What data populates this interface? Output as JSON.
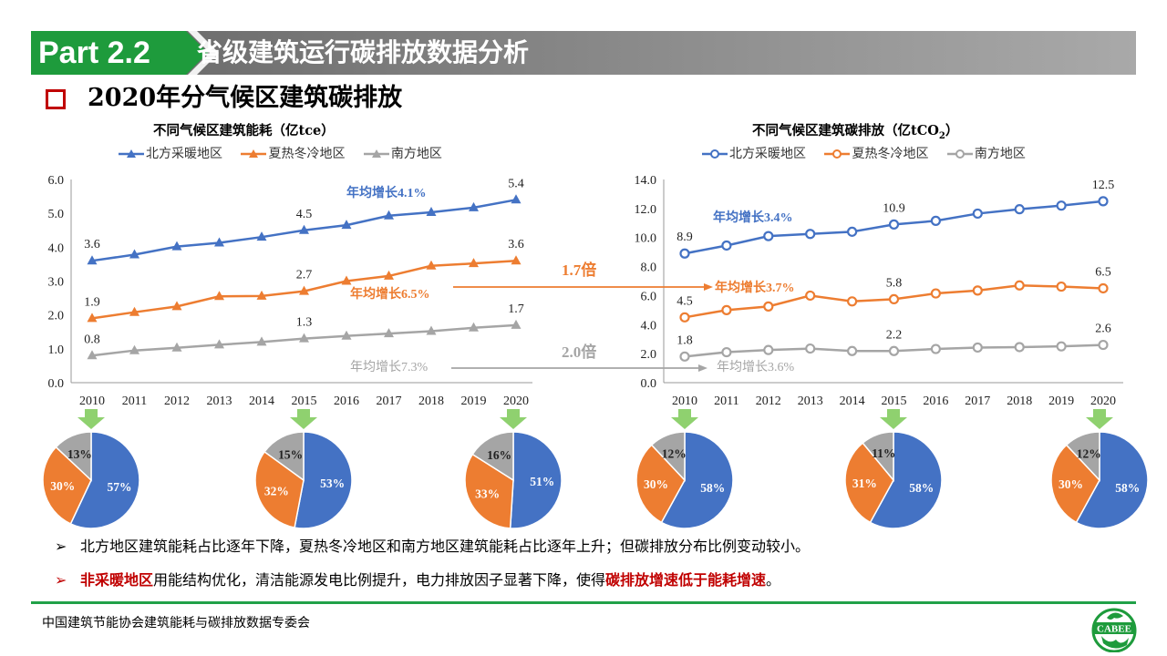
{
  "header": {
    "part_label": "Part 2.2",
    "title": "省级建筑运行碳排放数据分析",
    "green": "#1e9b3c",
    "gray": "#8a8a8a"
  },
  "section": {
    "title": "2020年分气候区建筑碳排放"
  },
  "legend": [
    "北方采暖地区",
    "夏热冬冷地区",
    "南方地区"
  ],
  "colors": {
    "blue": "#4472c4",
    "orange": "#ed7d31",
    "gray": "#a5a5a5"
  },
  "chart_data": [
    {
      "type": "line",
      "title": "不同气候区建筑能耗（亿tce）",
      "x": [
        "2010",
        "2011",
        "2012",
        "2013",
        "2014",
        "2015",
        "2016",
        "2017",
        "2018",
        "2019",
        "2020"
      ],
      "ylim": [
        0,
        6
      ],
      "yticks": [
        "0.0",
        "1.0",
        "2.0",
        "3.0",
        "4.0",
        "5.0",
        "6.0"
      ],
      "grid": false,
      "legend_position": "top",
      "series": [
        {
          "name": "北方采暖地区",
          "values": [
            3.6,
            3.78,
            4.02,
            4.13,
            4.3,
            4.5,
            4.65,
            4.93,
            5.03,
            5.17,
            5.4
          ]
        },
        {
          "name": "夏热冬冷地区",
          "values": [
            1.9,
            2.08,
            2.25,
            2.55,
            2.56,
            2.7,
            3.0,
            3.15,
            3.45,
            3.52,
            3.6
          ]
        },
        {
          "name": "南方地区",
          "values": [
            0.8,
            0.95,
            1.03,
            1.12,
            1.2,
            1.3,
            1.38,
            1.45,
            1.52,
            1.62,
            1.7
          ]
        }
      ],
      "data_labels": [
        {
          "series": 0,
          "index": 0,
          "text": "3.6"
        },
        {
          "series": 0,
          "index": 5,
          "text": "4.5"
        },
        {
          "series": 0,
          "index": 10,
          "text": "5.4"
        },
        {
          "series": 1,
          "index": 0,
          "text": "1.9"
        },
        {
          "series": 1,
          "index": 5,
          "text": "2.7"
        },
        {
          "series": 1,
          "index": 10,
          "text": "3.6"
        },
        {
          "series": 2,
          "index": 0,
          "text": "0.8"
        },
        {
          "series": 2,
          "index": 5,
          "text": "1.3"
        },
        {
          "series": 2,
          "index": 10,
          "text": "1.7"
        }
      ],
      "annotations": {
        "blue": "年均增长4.1%",
        "orange": "年均增长6.5%",
        "gray": "年均增长7.3%"
      }
    },
    {
      "type": "line",
      "title": "不同气候区建筑碳排放（亿tCO",
      "title_sub": "2",
      "title_end": "）",
      "x": [
        "2010",
        "2011",
        "2012",
        "2013",
        "2014",
        "2015",
        "2016",
        "2017",
        "2018",
        "2019",
        "2020"
      ],
      "ylim": [
        0,
        14
      ],
      "yticks": [
        "0.0",
        "2.0",
        "4.0",
        "6.0",
        "8.0",
        "10.0",
        "12.0",
        "14.0"
      ],
      "grid": false,
      "legend_position": "top",
      "series": [
        {
          "name": "北方采暖地区",
          "values": [
            8.9,
            9.45,
            10.1,
            10.25,
            10.4,
            10.9,
            11.15,
            11.65,
            11.95,
            12.2,
            12.5
          ]
        },
        {
          "name": "夏热冬冷地区",
          "values": [
            4.5,
            5.0,
            5.25,
            6.0,
            5.6,
            5.75,
            6.15,
            6.35,
            6.7,
            6.62,
            6.5
          ]
        },
        {
          "name": "南方地区",
          "values": [
            1.8,
            2.1,
            2.25,
            2.35,
            2.18,
            2.18,
            2.32,
            2.42,
            2.45,
            2.5,
            2.6
          ]
        }
      ],
      "data_labels": [
        {
          "series": 0,
          "index": 0,
          "text": "8.9"
        },
        {
          "series": 0,
          "index": 5,
          "text": "10.9"
        },
        {
          "series": 0,
          "index": 10,
          "text": "12.5"
        },
        {
          "series": 1,
          "index": 0,
          "text": "4.5"
        },
        {
          "series": 1,
          "index": 5,
          "text": "5.8"
        },
        {
          "series": 1,
          "index": 10,
          "text": "6.5"
        },
        {
          "series": 2,
          "index": 0,
          "text": "1.8"
        },
        {
          "series": 2,
          "index": 5,
          "text": "2.2"
        },
        {
          "series": 2,
          "index": 10,
          "text": "2.6"
        }
      ],
      "annotations": {
        "blue": "年均增长3.4%",
        "orange": "年均增长3.7%",
        "gray": "年均增长3.6%"
      }
    },
    {
      "type": "pie",
      "values": [
        57,
        30,
        13
      ],
      "labels": [
        "57%",
        "30%",
        "13%"
      ]
    },
    {
      "type": "pie",
      "values": [
        53,
        32,
        15
      ],
      "labels": [
        "53%",
        "32%",
        "15%"
      ]
    },
    {
      "type": "pie",
      "values": [
        51,
        33,
        16
      ],
      "labels": [
        "51%",
        "33%",
        "16%"
      ]
    },
    {
      "type": "pie",
      "values": [
        58,
        30,
        12
      ],
      "labels": [
        "58%",
        "30%",
        "12%"
      ]
    },
    {
      "type": "pie",
      "values": [
        58,
        31,
        11
      ],
      "labels": [
        "58%",
        "31%",
        "11%"
      ]
    },
    {
      "type": "pie",
      "values": [
        58,
        30,
        12
      ],
      "labels": [
        "58%",
        "30%",
        "12%"
      ]
    }
  ],
  "multipliers": {
    "orange": "1.7倍",
    "gray": "2.0倍"
  },
  "bullets": {
    "line1": "北方地区建筑能耗占比逐年下降，夏热冬冷地区和南方地区建筑能耗占比逐年上升；但碳排放分布比例变动较小。",
    "line2_red1": "非采暖地区",
    "line2_mid": "用能结构优化，清洁能源发电比例提升，电力排放因子显著下降，使得",
    "line2_red2": "碳排放增速低于能耗增速",
    "line2_end": "。",
    "marker": "➢"
  },
  "footer": {
    "text": "中国建筑节能协会建筑能耗与碳排放数据专委会",
    "logo_text": "CABEE"
  }
}
